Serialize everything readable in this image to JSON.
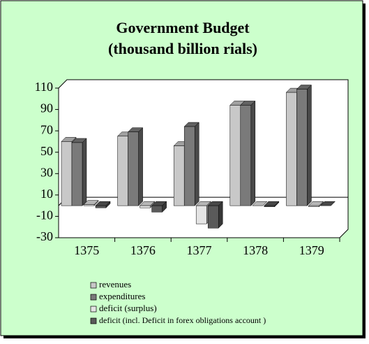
{
  "chart_data": {
    "type": "bar3d",
    "title": [
      "Government Budget",
      "(thousand billion rials)"
    ],
    "categories": [
      "1375",
      "1376",
      "1377",
      "1378",
      "1379"
    ],
    "series": [
      {
        "name": "revenues",
        "color": "#c8c8c8",
        "values": [
          60,
          65,
          56,
          94,
          106
        ]
      },
      {
        "name": "expenditures",
        "color": "#7a7a7a",
        "values": [
          59,
          69,
          74,
          94,
          109
        ]
      },
      {
        "name": "deficit (surplus)",
        "color": "#e4e4e4",
        "values": [
          1,
          -2,
          -17,
          0,
          -1
        ]
      },
      {
        "name": "deficit (incl. Deficit in forex obligations account )",
        "color": "#5a5a5a",
        "values": [
          -2,
          -6,
          -21,
          -1,
          0
        ]
      }
    ],
    "ylim": [
      -30,
      110
    ],
    "yticks": [
      -30,
      -10,
      10,
      30,
      50,
      70,
      90,
      110
    ],
    "background": "#ccffcc"
  }
}
